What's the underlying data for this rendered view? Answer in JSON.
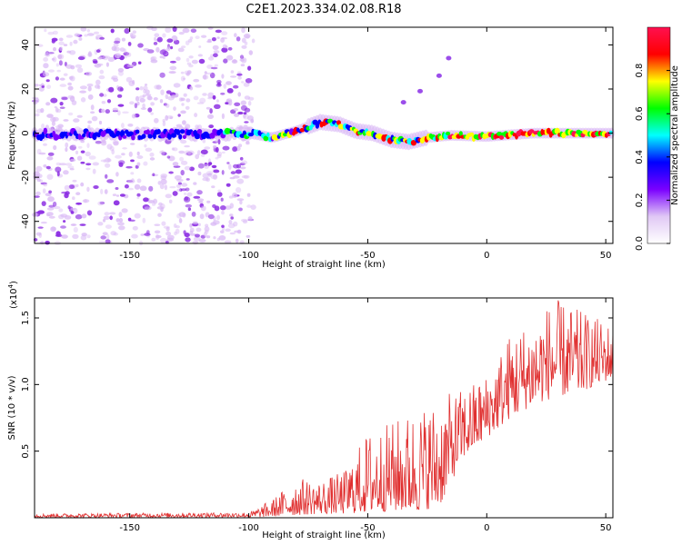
{
  "title": "C2E1.2023.334.02.08.R18",
  "chart_data": [
    {
      "type": "heatmap",
      "xlabel": "Height of straight line (km)",
      "ylabel": "Frequency (Hz)",
      "xlim": [
        -190,
        53
      ],
      "ylim": [
        -50,
        48
      ],
      "xticks": [
        -150,
        -100,
        -50,
        0,
        50
      ],
      "yticks": [
        -40,
        -20,
        0,
        20,
        40
      ],
      "colorbar": {
        "label": "Normalized spectral amplitude",
        "range": [
          0,
          1
        ],
        "ticks": [
          "0.0",
          "0.2",
          "0.4",
          "0.6",
          "0.8"
        ],
        "tick_values": [
          0.0,
          0.2,
          0.4,
          0.6,
          0.8
        ],
        "colors": [
          "#ffffff",
          "#e0c8f5",
          "#7a00ff",
          "#0000ff",
          "#00ffff",
          "#00ff00",
          "#ffff00",
          "#ff0000",
          "#ff1050"
        ]
      },
      "signal_band": [
        {
          "x": -100,
          "f": 0.0
        },
        {
          "x": -90,
          "f": -2.0
        },
        {
          "x": -80,
          "f": 1.0
        },
        {
          "x": -70,
          "f": 5.0
        },
        {
          "x": -62,
          "f": 4.0
        },
        {
          "x": -55,
          "f": 1.0
        },
        {
          "x": -48,
          "f": 0.0
        },
        {
          "x": -40,
          "f": -3.0
        },
        {
          "x": -33,
          "f": -4.0
        },
        {
          "x": -25,
          "f": -2.0
        },
        {
          "x": -15,
          "f": -1.0
        },
        {
          "x": 0,
          "f": -1.5
        },
        {
          "x": 20,
          "f": 0.0
        },
        {
          "x": 40,
          "f": 0.0
        },
        {
          "x": 53,
          "f": 0.0
        }
      ],
      "diagonal_trace": [
        {
          "x": -35,
          "f": 14
        },
        {
          "x": -28,
          "f": 19
        },
        {
          "x": -20,
          "f": 26
        },
        {
          "x": -16,
          "f": 34
        }
      ],
      "noise_region_x": [
        -190,
        -98
      ]
    },
    {
      "type": "line",
      "xlabel": "Height of straight line (km)",
      "ylabel": "SNR (10 * v/v)",
      "multiplier_label": "(x10",
      "multiplier_exponent": "4",
      "multiplier_close": ")",
      "xlim": [
        -190,
        53
      ],
      "ylim": [
        0,
        1.65
      ],
      "xticks": [
        -150,
        -100,
        -50,
        0,
        50
      ],
      "yticks": [
        0.5,
        1.0,
        1.5
      ],
      "ytick_labels": [
        "0.5",
        "1.0",
        "1.5"
      ],
      "series_color": "#e03030",
      "envelope": [
        {
          "x": -190,
          "min": 0.0,
          "max": 0.03
        },
        {
          "x": -100,
          "min": 0.0,
          "max": 0.04
        },
        {
          "x": -90,
          "min": 0.01,
          "max": 0.14
        },
        {
          "x": -80,
          "min": 0.02,
          "max": 0.3
        },
        {
          "x": -70,
          "min": 0.03,
          "max": 0.28
        },
        {
          "x": -60,
          "min": 0.03,
          "max": 0.35
        },
        {
          "x": -50,
          "min": 0.04,
          "max": 0.65
        },
        {
          "x": -40,
          "min": 0.05,
          "max": 0.72
        },
        {
          "x": -30,
          "min": 0.05,
          "max": 0.82
        },
        {
          "x": -20,
          "min": 0.08,
          "max": 0.9
        },
        {
          "x": -10,
          "min": 0.45,
          "max": 0.97
        },
        {
          "x": 0,
          "min": 0.6,
          "max": 1.08
        },
        {
          "x": 10,
          "min": 0.75,
          "max": 1.4
        },
        {
          "x": 20,
          "min": 0.85,
          "max": 1.5
        },
        {
          "x": 28,
          "min": 0.9,
          "max": 1.65
        },
        {
          "x": 40,
          "min": 0.95,
          "max": 1.55
        },
        {
          "x": 53,
          "min": 1.05,
          "max": 1.45
        }
      ]
    }
  ]
}
